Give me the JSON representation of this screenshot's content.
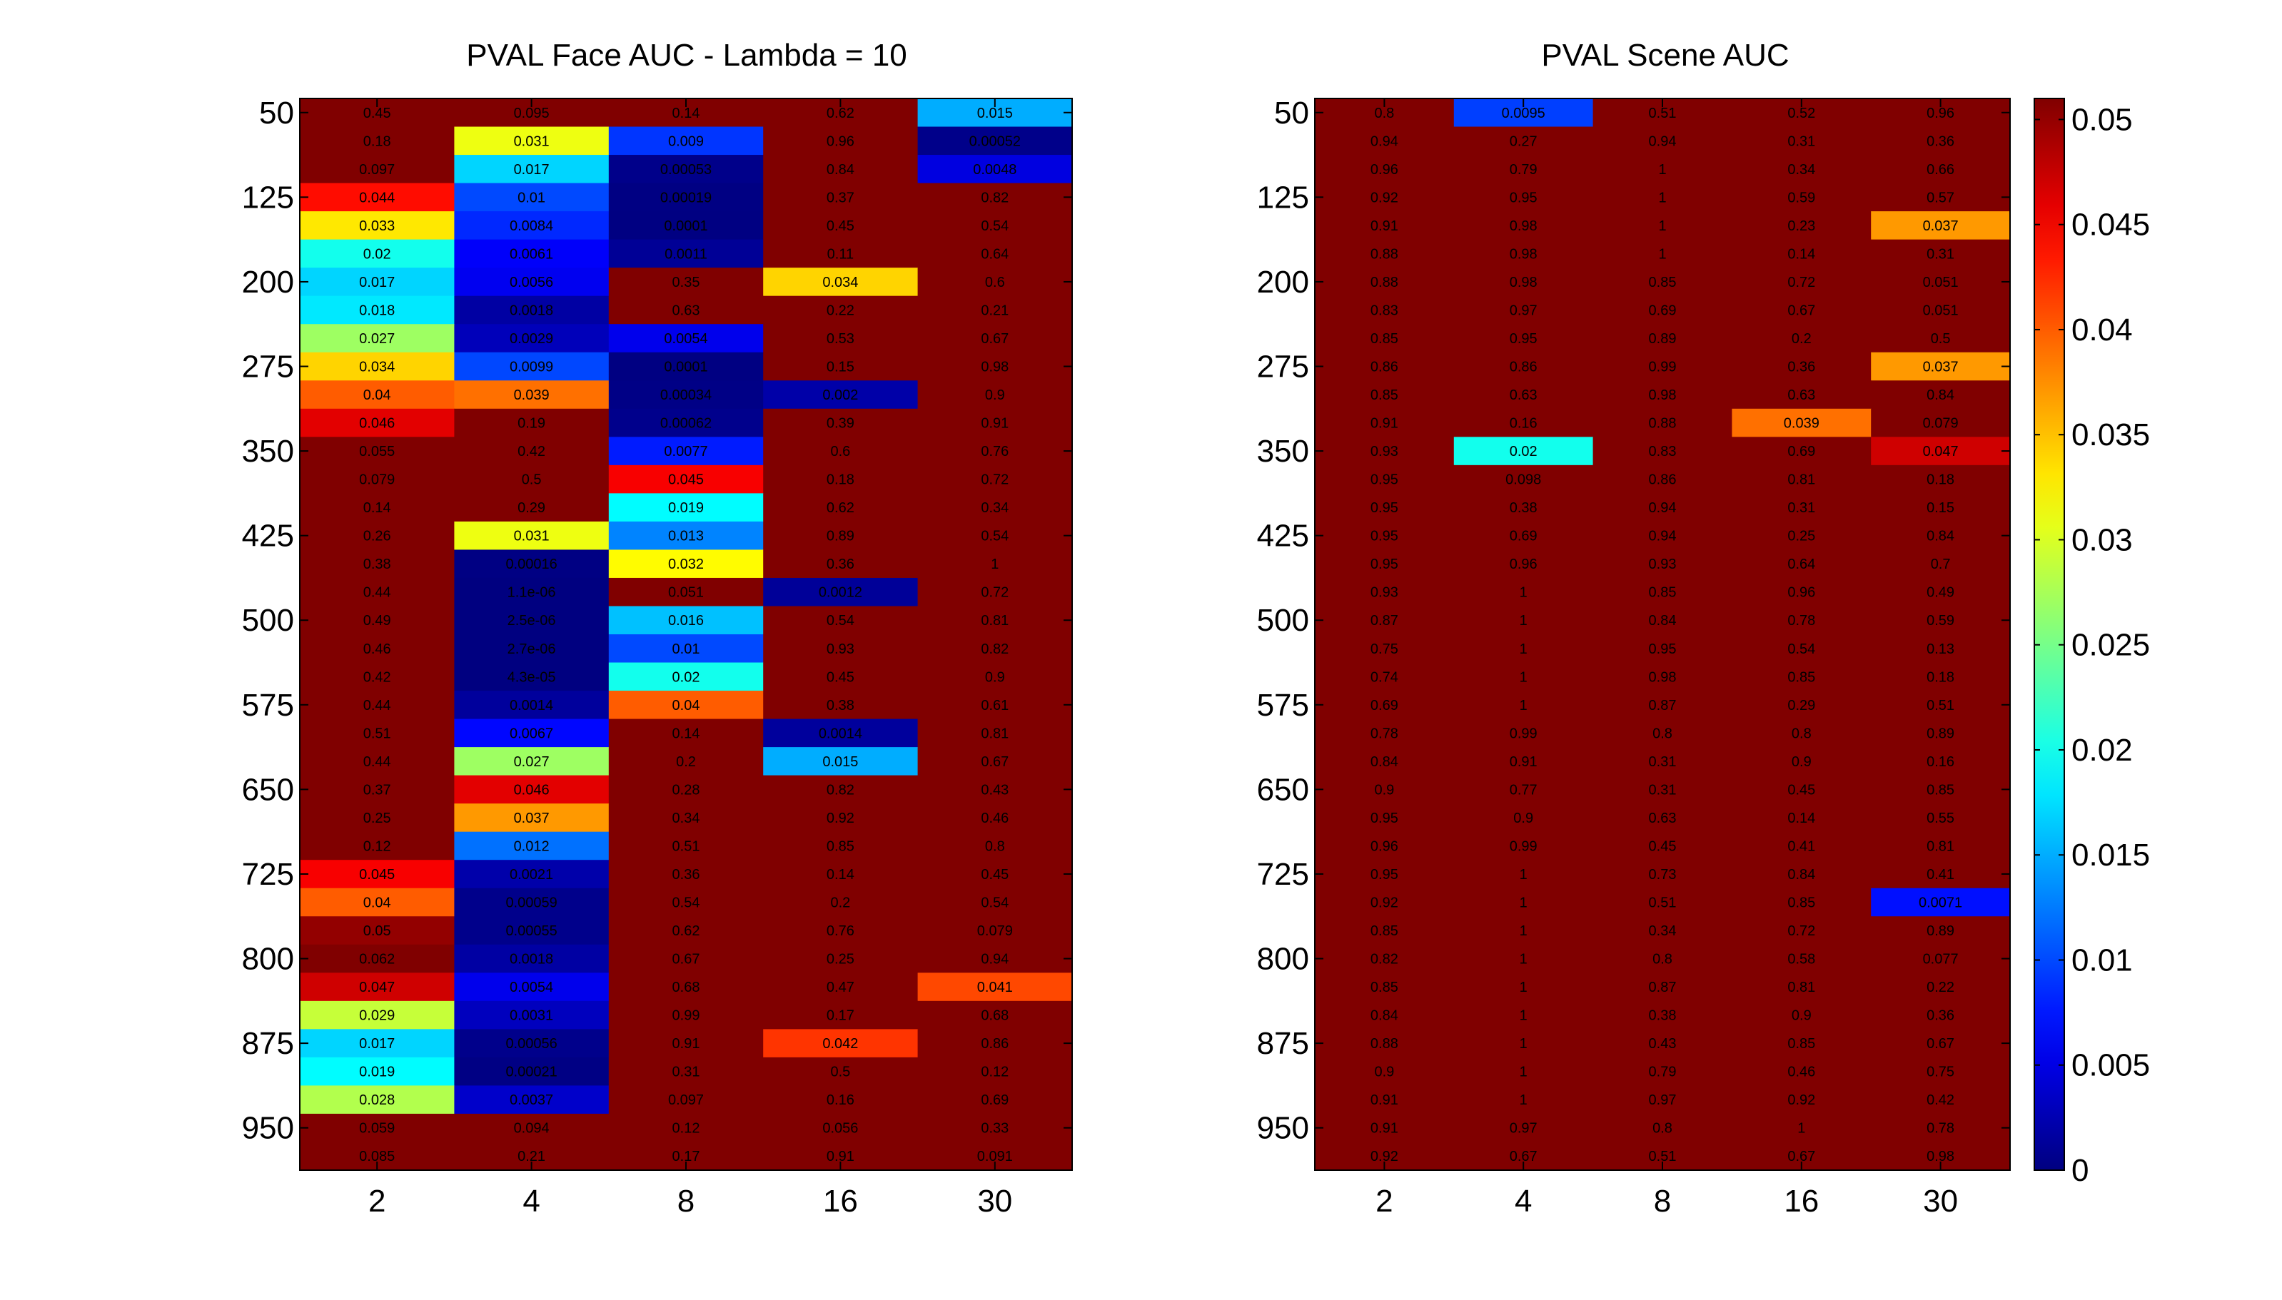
{
  "chart_data": [
    {
      "type": "heatmap",
      "title": "PVAL Face AUC - Lambda = 10",
      "xlabel": "",
      "ylabel": "",
      "x": [
        2,
        4,
        8,
        16,
        30
      ],
      "y": [
        50,
        75,
        100,
        125,
        150,
        175,
        200,
        225,
        250,
        275,
        300,
        325,
        350,
        375,
        400,
        425,
        450,
        475,
        500,
        525,
        550,
        575,
        600,
        625,
        650,
        675,
        700,
        725,
        750,
        775,
        800,
        825,
        850,
        875,
        900,
        925,
        950,
        975
      ],
      "ytick_labels": [
        "50",
        "125",
        "200",
        "275",
        "350",
        "425",
        "500",
        "575",
        "650",
        "725",
        "800",
        "875",
        "950"
      ],
      "ytick_values": [
        50,
        125,
        200,
        275,
        350,
        425,
        500,
        575,
        650,
        725,
        800,
        875,
        950
      ],
      "values": [
        [
          "0.45",
          "0.095",
          "0.14",
          "0.62",
          "0.015"
        ],
        [
          "0.18",
          "0.031",
          "0.009",
          "0.96",
          "0.00052"
        ],
        [
          "0.097",
          "0.017",
          "0.00053",
          "0.84",
          "0.0048"
        ],
        [
          "0.044",
          "0.01",
          "0.00019",
          "0.37",
          "0.82"
        ],
        [
          "0.033",
          "0.0084",
          "0.0001",
          "0.45",
          "0.54"
        ],
        [
          "0.02",
          "0.0061",
          "0.0011",
          "0.11",
          "0.64"
        ],
        [
          "0.017",
          "0.0056",
          "0.35",
          "0.034",
          "0.6"
        ],
        [
          "0.018",
          "0.0018",
          "0.63",
          "0.22",
          "0.21"
        ],
        [
          "0.027",
          "0.0029",
          "0.0054",
          "0.53",
          "0.67"
        ],
        [
          "0.034",
          "0.0099",
          "0.0001",
          "0.15",
          "0.98"
        ],
        [
          "0.04",
          "0.039",
          "0.00034",
          "0.002",
          "0.9"
        ],
        [
          "0.046",
          "0.19",
          "0.00062",
          "0.39",
          "0.91"
        ],
        [
          "0.055",
          "0.42",
          "0.0077",
          "0.6",
          "0.76"
        ],
        [
          "0.079",
          "0.5",
          "0.045",
          "0.18",
          "0.72"
        ],
        [
          "0.14",
          "0.29",
          "0.019",
          "0.62",
          "0.34"
        ],
        [
          "0.26",
          "0.031",
          "0.013",
          "0.89",
          "0.54"
        ],
        [
          "0.38",
          "0.00016",
          "0.032",
          "0.36",
          "1"
        ],
        [
          "0.44",
          "1.1e-06",
          "0.051",
          "0.0012",
          "0.72"
        ],
        [
          "0.49",
          "2.5e-06",
          "0.016",
          "0.54",
          "0.81"
        ],
        [
          "0.46",
          "2.7e-06",
          "0.01",
          "0.93",
          "0.82"
        ],
        [
          "0.42",
          "4.3e-05",
          "0.02",
          "0.45",
          "0.9"
        ],
        [
          "0.44",
          "0.0014",
          "0.04",
          "0.38",
          "0.61"
        ],
        [
          "0.51",
          "0.0067",
          "0.14",
          "0.0014",
          "0.81"
        ],
        [
          "0.44",
          "0.027",
          "0.2",
          "0.015",
          "0.67"
        ],
        [
          "0.37",
          "0.046",
          "0.28",
          "0.82",
          "0.43"
        ],
        [
          "0.25",
          "0.037",
          "0.34",
          "0.92",
          "0.46"
        ],
        [
          "0.12",
          "0.012",
          "0.51",
          "0.85",
          "0.8"
        ],
        [
          "0.045",
          "0.0021",
          "0.36",
          "0.14",
          "0.45"
        ],
        [
          "0.04",
          "0.00059",
          "0.54",
          "0.2",
          "0.54"
        ],
        [
          "0.05",
          "0.00055",
          "0.62",
          "0.76",
          "0.079"
        ],
        [
          "0.062",
          "0.0018",
          "0.67",
          "0.25",
          "0.94"
        ],
        [
          "0.047",
          "0.0054",
          "0.68",
          "0.47",
          "0.041"
        ],
        [
          "0.029",
          "0.0031",
          "0.99",
          "0.17",
          "0.68"
        ],
        [
          "0.017",
          "0.00056",
          "0.91",
          "0.042",
          "0.86"
        ],
        [
          "0.019",
          "0.00021",
          "0.31",
          "0.5",
          "0.12"
        ],
        [
          "0.028",
          "0.0037",
          "0.097",
          "0.16",
          "0.69"
        ],
        [
          "0.059",
          "0.094",
          "0.12",
          "0.056",
          "0.33"
        ],
        [
          "0.085",
          "0.21",
          "0.17",
          "0.91",
          "0.091"
        ]
      ]
    },
    {
      "type": "heatmap",
      "title": "PVAL Scene AUC",
      "xlabel": "",
      "ylabel": "",
      "x": [
        2,
        4,
        8,
        16,
        30
      ],
      "y": [
        50,
        75,
        100,
        125,
        150,
        175,
        200,
        225,
        250,
        275,
        300,
        325,
        350,
        375,
        400,
        425,
        450,
        475,
        500,
        525,
        550,
        575,
        600,
        625,
        650,
        675,
        700,
        725,
        750,
        775,
        800,
        825,
        850,
        875,
        900,
        925,
        950,
        975
      ],
      "ytick_labels": [
        "50",
        "125",
        "200",
        "275",
        "350",
        "425",
        "500",
        "575",
        "650",
        "725",
        "800",
        "875",
        "950"
      ],
      "ytick_values": [
        50,
        125,
        200,
        275,
        350,
        425,
        500,
        575,
        650,
        725,
        800,
        875,
        950
      ],
      "values": [
        [
          "0.8",
          "0.0095",
          "0.51",
          "0.52",
          "0.96"
        ],
        [
          "0.94",
          "0.27",
          "0.94",
          "0.31",
          "0.36"
        ],
        [
          "0.96",
          "0.79",
          "1",
          "0.34",
          "0.66"
        ],
        [
          "0.92",
          "0.95",
          "1",
          "0.59",
          "0.57"
        ],
        [
          "0.91",
          "0.98",
          "1",
          "0.23",
          "0.037"
        ],
        [
          "0.88",
          "0.98",
          "1",
          "0.14",
          "0.31"
        ],
        [
          "0.88",
          "0.98",
          "0.85",
          "0.72",
          "0.051"
        ],
        [
          "0.83",
          "0.97",
          "0.69",
          "0.67",
          "0.051"
        ],
        [
          "0.85",
          "0.95",
          "0.89",
          "0.2",
          "0.5"
        ],
        [
          "0.86",
          "0.86",
          "0.99",
          "0.36",
          "0.037"
        ],
        [
          "0.85",
          "0.63",
          "0.98",
          "0.63",
          "0.84"
        ],
        [
          "0.91",
          "0.16",
          "0.88",
          "0.039",
          "0.079"
        ],
        [
          "0.93",
          "0.02",
          "0.83",
          "0.69",
          "0.047"
        ],
        [
          "0.95",
          "0.098",
          "0.86",
          "0.81",
          "0.18"
        ],
        [
          "0.95",
          "0.38",
          "0.94",
          "0.31",
          "0.15"
        ],
        [
          "0.95",
          "0.69",
          "0.94",
          "0.25",
          "0.84"
        ],
        [
          "0.95",
          "0.96",
          "0.93",
          "0.64",
          "0.7"
        ],
        [
          "0.93",
          "1",
          "0.85",
          "0.96",
          "0.49"
        ],
        [
          "0.87",
          "1",
          "0.84",
          "0.78",
          "0.59"
        ],
        [
          "0.75",
          "1",
          "0.95",
          "0.54",
          "0.13"
        ],
        [
          "0.74",
          "1",
          "0.98",
          "0.85",
          "0.18"
        ],
        [
          "0.69",
          "1",
          "0.87",
          "0.29",
          "0.51"
        ],
        [
          "0.78",
          "0.99",
          "0.8",
          "0.8",
          "0.89"
        ],
        [
          "0.84",
          "0.91",
          "0.31",
          "0.9",
          "0.16"
        ],
        [
          "0.9",
          "0.77",
          "0.31",
          "0.45",
          "0.85"
        ],
        [
          "0.95",
          "0.9",
          "0.63",
          "0.14",
          "0.55"
        ],
        [
          "0.96",
          "0.99",
          "0.45",
          "0.41",
          "0.81"
        ],
        [
          "0.95",
          "1",
          "0.73",
          "0.84",
          "0.41"
        ],
        [
          "0.92",
          "1",
          "0.51",
          "0.85",
          "0.0071"
        ],
        [
          "0.85",
          "1",
          "0.34",
          "0.72",
          "0.89"
        ],
        [
          "0.82",
          "1",
          "0.8",
          "0.58",
          "0.077"
        ],
        [
          "0.85",
          "1",
          "0.87",
          "0.81",
          "0.22"
        ],
        [
          "0.84",
          "1",
          "0.38",
          "0.9",
          "0.36"
        ],
        [
          "0.88",
          "1",
          "0.43",
          "0.85",
          "0.67"
        ],
        [
          "0.9",
          "1",
          "0.79",
          "0.46",
          "0.75"
        ],
        [
          "0.91",
          "1",
          "0.97",
          "0.92",
          "0.42"
        ],
        [
          "0.91",
          "0.97",
          "0.8",
          "1",
          "0.78"
        ],
        [
          "0.92",
          "0.67",
          "0.51",
          "0.67",
          "0.98"
        ]
      ]
    }
  ],
  "colorbar": {
    "range": [
      0,
      0.051
    ],
    "tick_values": [
      0,
      0.005,
      0.01,
      0.015,
      0.02,
      0.025,
      0.03,
      0.035,
      0.04,
      0.045,
      0.05
    ],
    "tick_labels": [
      "0",
      "0.005",
      "0.01",
      "0.015",
      "0.02",
      "0.025",
      "0.03",
      "0.035",
      "0.04",
      "0.045",
      "0.05"
    ],
    "colormap": "jet"
  }
}
